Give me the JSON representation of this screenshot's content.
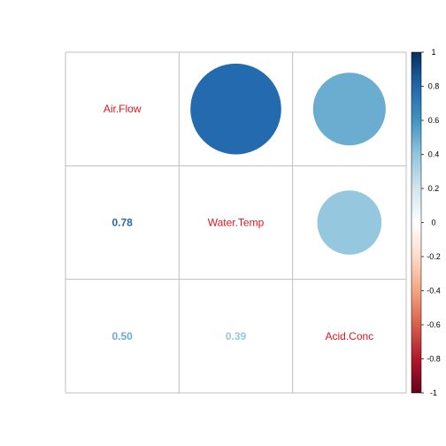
{
  "chart_data": {
    "type": "heatmap",
    "variables": [
      "Air.Flow",
      "Water.Temp",
      "Acid.Conc"
    ],
    "matrix": [
      [
        1.0,
        0.78,
        0.5
      ],
      [
        0.78,
        1.0,
        0.39
      ],
      [
        0.5,
        0.39,
        1.0
      ]
    ],
    "upper_method": "circle",
    "lower_method": "number",
    "lower_labels": {
      "1_0": "0.78",
      "2_0": "0.50",
      "2_1": "0.39"
    },
    "colorbar": {
      "range": [
        -1,
        1
      ],
      "ticks": [
        "1",
        "0.8",
        "0.6",
        "0.4",
        "0.2",
        "0",
        "-0.2",
        "-0.4",
        "-0.6",
        "-0.8",
        "-1"
      ]
    },
    "colors": {
      "label": "#e0141e",
      "grid": "#bfbfbf",
      "palette": [
        "#67001f",
        "#b2182b",
        "#d6604d",
        "#f4a582",
        "#fddbc7",
        "#ffffff",
        "#d1e5f0",
        "#92c5de",
        "#4393c3",
        "#2166ac",
        "#053061"
      ]
    }
  }
}
